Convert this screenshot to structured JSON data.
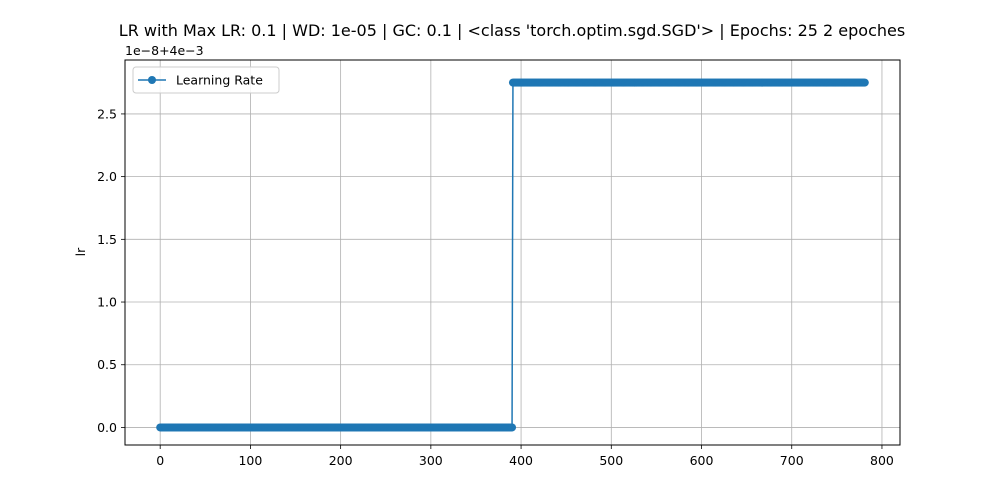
{
  "chart_data": {
    "type": "line",
    "title": "LR with Max LR: 0.1 | WD: 1e-05 | GC: 0.1 | <class 'torch.optim.sgd.SGD'> | Epochs: 25 2 epoches",
    "xlabel": "",
    "ylabel": "lr",
    "offset_label": "1e−8+4e−3",
    "xlim": [
      -39,
      820
    ],
    "ylim": [
      -0.14,
      2.93
    ],
    "x_ticks": [
      0,
      100,
      200,
      300,
      400,
      500,
      600,
      700,
      800
    ],
    "y_ticks": [
      0.0,
      0.5,
      1.0,
      1.5,
      2.0,
      2.5
    ],
    "y_tick_labels": [
      "0.0",
      "0.5",
      "1.0",
      "1.5",
      "2.0",
      "2.5"
    ],
    "grid": true,
    "legend_position": "top-left",
    "series": [
      {
        "name": "Learning Rate",
        "color": "#1f77b4",
        "marker": "circle",
        "segments": [
          {
            "x_start": 0,
            "x_end": 390,
            "step": 1,
            "value": 0.0
          },
          {
            "x_start": 391,
            "x_end": 781,
            "step": 1,
            "value": 2.75
          }
        ]
      }
    ]
  }
}
